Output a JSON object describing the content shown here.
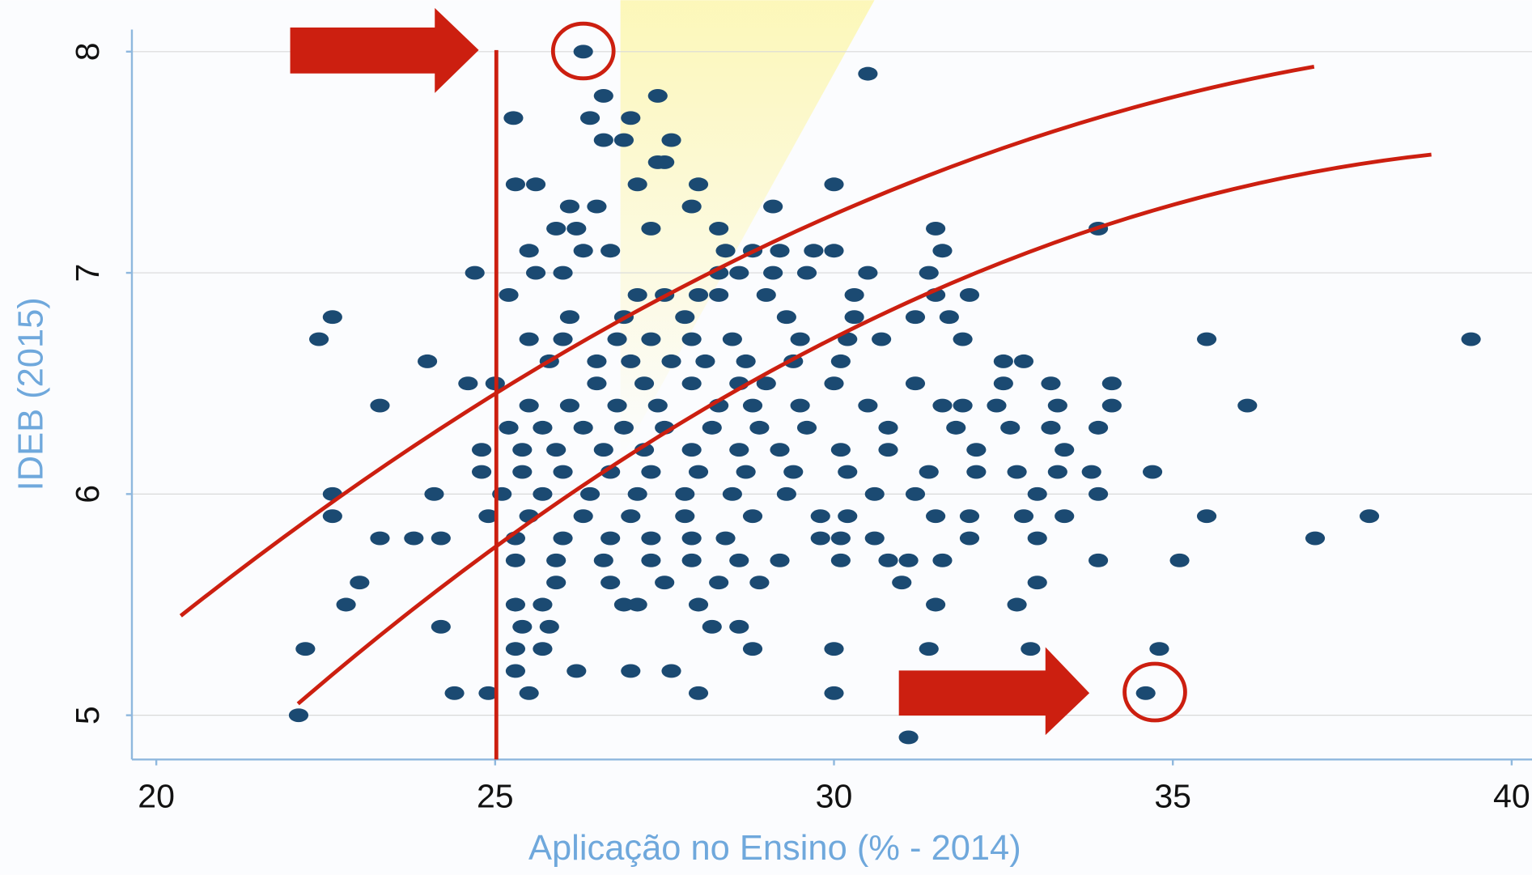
{
  "chart_data": {
    "type": "scatter",
    "xlabel": "Aplicação no Ensino (% - 2014)",
    "ylabel": "IDEB (2015)",
    "color": "#1b4a72",
    "grid": true,
    "xlim": [
      19.64,
      40.3
    ],
    "ylim": [
      4.8,
      8.1
    ],
    "xticks": [
      20,
      25,
      30,
      35,
      40
    ],
    "yticks": [
      5,
      6,
      7,
      8
    ],
    "x": [
      26.3,
      30.5,
      25.27,
      26.6,
      27.4,
      26.4,
      27.0,
      26.6,
      26.9,
      27.6,
      27.4,
      27.5,
      25.3,
      25.6,
      27.1,
      28.0,
      30.0,
      26.1,
      26.5,
      27.9,
      29.1,
      25.9,
      26.2,
      27.3,
      28.3,
      31.5,
      33.9,
      25.5,
      26.3,
      26.7,
      28.4,
      28.8,
      29.2,
      29.7,
      30.0,
      31.6,
      24.7,
      25.6,
      26.0,
      28.3,
      28.6,
      29.1,
      29.6,
      30.5,
      31.4,
      25.2,
      27.1,
      27.5,
      28.0,
      28.3,
      29.0,
      30.3,
      31.5,
      32.0,
      22.6,
      26.1,
      26.9,
      27.8,
      29.3,
      30.3,
      31.2,
      31.7,
      22.4,
      25.5,
      26.0,
      26.8,
      27.3,
      27.9,
      28.5,
      29.5,
      30.2,
      30.7,
      31.9,
      35.5,
      39.4,
      24.0,
      25.8,
      26.5,
      27.0,
      27.6,
      28.1,
      28.7,
      29.4,
      30.1,
      32.5,
      32.8,
      24.6,
      25.0,
      26.5,
      27.2,
      27.9,
      28.6,
      29.0,
      30.0,
      31.2,
      32.5,
      33.2,
      34.1,
      23.3,
      25.5,
      26.1,
      26.8,
      27.4,
      28.3,
      28.8,
      29.5,
      30.5,
      31.6,
      31.9,
      32.4,
      33.3,
      34.1,
      36.1,
      25.2,
      25.7,
      26.3,
      26.9,
      27.5,
      28.2,
      28.9,
      29.6,
      30.8,
      31.8,
      32.6,
      33.2,
      33.9,
      24.8,
      25.4,
      25.9,
      26.6,
      27.2,
      27.9,
      28.6,
      29.2,
      30.1,
      30.8,
      32.1,
      33.4,
      24.8,
      25.4,
      26.0,
      26.7,
      27.3,
      28.0,
      28.7,
      29.4,
      30.2,
      31.4,
      32.1,
      32.7,
      33.3,
      33.8,
      34.7,
      22.6,
      24.1,
      25.1,
      25.7,
      26.4,
      27.1,
      27.8,
      28.5,
      29.3,
      30.6,
      31.2,
      33.0,
      33.9,
      22.6,
      24.9,
      25.5,
      26.3,
      27.0,
      27.8,
      28.8,
      29.8,
      30.2,
      31.5,
      32.0,
      32.8,
      33.4,
      35.5,
      37.9,
      23.3,
      23.8,
      24.2,
      25.3,
      26.0,
      26.7,
      27.3,
      27.9,
      28.4,
      29.8,
      30.1,
      30.6,
      32.0,
      33.0,
      37.1,
      25.3,
      25.9,
      26.6,
      27.3,
      27.9,
      28.6,
      29.2,
      30.1,
      30.8,
      31.1,
      31.6,
      33.9,
      35.1,
      23.0,
      25.9,
      26.7,
      27.5,
      28.3,
      28.9,
      31.0,
      33.0,
      22.8,
      25.3,
      25.7,
      26.9,
      27.1,
      28.0,
      31.5,
      32.7,
      24.2,
      25.4,
      25.8,
      28.2,
      28.6,
      22.2,
      25.3,
      25.7,
      28.8,
      30.0,
      31.4,
      32.9,
      34.8,
      25.3,
      26.2,
      27.0,
      27.6,
      24.4,
      24.9,
      25.5,
      28.0,
      30.0,
      34.6,
      22.1,
      31.1
    ],
    "values": [
      8.0,
      7.9,
      7.7,
      7.8,
      7.8,
      7.7,
      7.7,
      7.6,
      7.6,
      7.6,
      7.5,
      7.5,
      7.4,
      7.4,
      7.4,
      7.4,
      7.4,
      7.3,
      7.3,
      7.3,
      7.3,
      7.2,
      7.2,
      7.2,
      7.2,
      7.2,
      7.2,
      7.1,
      7.1,
      7.1,
      7.1,
      7.1,
      7.1,
      7.1,
      7.1,
      7.1,
      7.0,
      7.0,
      7.0,
      7.0,
      7.0,
      7.0,
      7.0,
      7.0,
      7.0,
      6.9,
      6.9,
      6.9,
      6.9,
      6.9,
      6.9,
      6.9,
      6.9,
      6.9,
      6.8,
      6.8,
      6.8,
      6.8,
      6.8,
      6.8,
      6.8,
      6.8,
      6.7,
      6.7,
      6.7,
      6.7,
      6.7,
      6.7,
      6.7,
      6.7,
      6.7,
      6.7,
      6.7,
      6.7,
      6.7,
      6.6,
      6.6,
      6.6,
      6.6,
      6.6,
      6.6,
      6.6,
      6.6,
      6.6,
      6.6,
      6.6,
      6.5,
      6.5,
      6.5,
      6.5,
      6.5,
      6.5,
      6.5,
      6.5,
      6.5,
      6.5,
      6.5,
      6.5,
      6.4,
      6.4,
      6.4,
      6.4,
      6.4,
      6.4,
      6.4,
      6.4,
      6.4,
      6.4,
      6.4,
      6.4,
      6.4,
      6.4,
      6.4,
      6.3,
      6.3,
      6.3,
      6.3,
      6.3,
      6.3,
      6.3,
      6.3,
      6.3,
      6.3,
      6.3,
      6.3,
      6.3,
      6.2,
      6.2,
      6.2,
      6.2,
      6.2,
      6.2,
      6.2,
      6.2,
      6.2,
      6.2,
      6.2,
      6.2,
      6.1,
      6.1,
      6.1,
      6.1,
      6.1,
      6.1,
      6.1,
      6.1,
      6.1,
      6.1,
      6.1,
      6.1,
      6.1,
      6.1,
      6.1,
      6.0,
      6.0,
      6.0,
      6.0,
      6.0,
      6.0,
      6.0,
      6.0,
      6.0,
      6.0,
      6.0,
      6.0,
      6.0,
      5.9,
      5.9,
      5.9,
      5.9,
      5.9,
      5.9,
      5.9,
      5.9,
      5.9,
      5.9,
      5.9,
      5.9,
      5.9,
      5.9,
      5.9,
      5.8,
      5.8,
      5.8,
      5.8,
      5.8,
      5.8,
      5.8,
      5.8,
      5.8,
      5.8,
      5.8,
      5.8,
      5.8,
      5.8,
      5.8,
      5.7,
      5.7,
      5.7,
      5.7,
      5.7,
      5.7,
      5.7,
      5.7,
      5.7,
      5.7,
      5.7,
      5.7,
      5.7,
      5.6,
      5.6,
      5.6,
      5.6,
      5.6,
      5.6,
      5.6,
      5.6,
      5.5,
      5.5,
      5.5,
      5.5,
      5.5,
      5.5,
      5.5,
      5.5,
      5.4,
      5.4,
      5.4,
      5.4,
      5.4,
      5.3,
      5.3,
      5.3,
      5.3,
      5.3,
      5.3,
      5.3,
      5.3,
      5.2,
      5.2,
      5.2,
      5.2,
      5.1,
      5.1,
      5.1,
      5.1,
      5.1,
      5.1,
      5.0,
      4.9
    ]
  }
}
